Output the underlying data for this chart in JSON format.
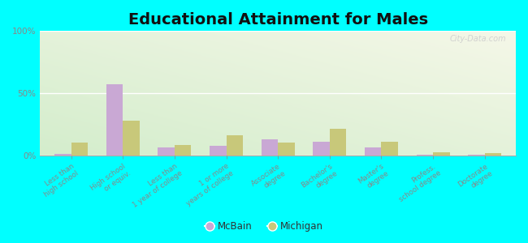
{
  "title": "Educational Attainment for Males",
  "categories": [
    "Less than\nhigh school",
    "High school\nor equiv.",
    "Less than\n1 year of college",
    "1 or more\nyears of college",
    "Associate\ndegree",
    "Bachelor's\ndegree",
    "Master's\ndegree",
    "Profess.\nschool degree",
    "Doctorate\ndegree"
  ],
  "mcbain_values": [
    1.0,
    57.0,
    6.5,
    7.5,
    13.0,
    11.0,
    6.0,
    0.5,
    0.5
  ],
  "michigan_values": [
    10.0,
    28.0,
    8.5,
    16.0,
    10.0,
    21.0,
    10.5,
    2.5,
    1.5
  ],
  "mcbain_color": "#c9a8d4",
  "michigan_color": "#c8c87a",
  "background_color": "#00ffff",
  "title_fontsize": 14,
  "ylabel_ticks": [
    "0%",
    "50%",
    "100%"
  ],
  "yticks": [
    0,
    50,
    100
  ],
  "ylim": [
    0,
    100
  ],
  "bar_width": 0.32,
  "watermark": "City-Data.com",
  "legend_labels": [
    "McBain",
    "Michigan"
  ]
}
